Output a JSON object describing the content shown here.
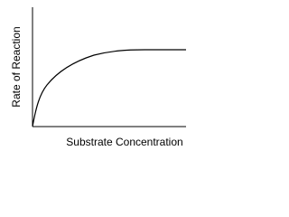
{
  "axes": {
    "x_label": "Substrate Concentration",
    "y_label": "Rate of Reaction"
  }
}
